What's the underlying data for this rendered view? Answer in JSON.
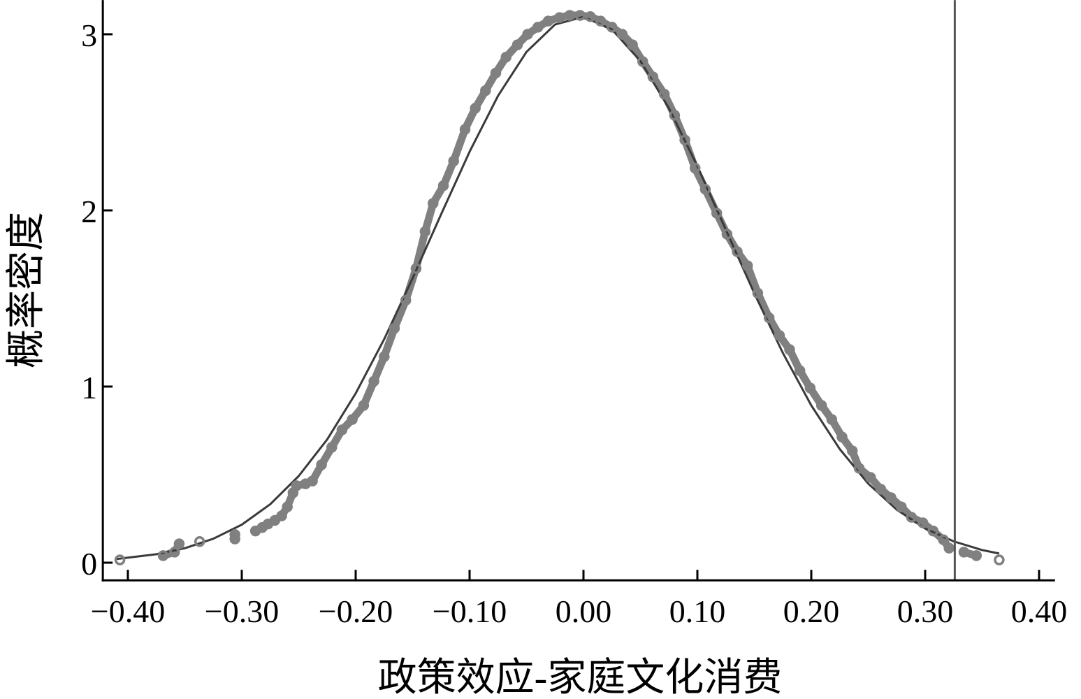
{
  "chart_data": {
    "type": "scatter",
    "title": "",
    "xlabel": "政策效应-家庭文化消费",
    "ylabel": "概率密度",
    "xlim": [
      -0.422,
      0.414
    ],
    "ylim": [
      -0.1,
      3.194
    ],
    "x_ticks": [
      -0.4,
      -0.3,
      -0.2,
      -0.1,
      0.0,
      0.1,
      0.2,
      0.3,
      0.4
    ],
    "x_tick_labels": [
      "−0.40",
      "−0.30",
      "−0.20",
      "−0.10",
      "0.00",
      "0.10",
      "0.20",
      "0.30",
      "0.40"
    ],
    "y_ticks": [
      0,
      1,
      2,
      3
    ],
    "y_tick_labels": [
      "0",
      "1",
      "2",
      "3"
    ],
    "grid": false,
    "legend": "none",
    "reference_line": {
      "orientation": "vertical",
      "x": 0.326
    },
    "colors": {
      "points": "#808080",
      "curve": "#3a3a3a",
      "reference_line": "#555555",
      "axis": "#000000"
    },
    "series": [
      {
        "kind": "scatter",
        "marker": "hollow-circle",
        "points": [
          [
            -0.407,
            0.016
          ],
          [
            -0.369,
            0.04
          ],
          [
            -0.359,
            0.06
          ],
          [
            -0.355,
            0.107
          ],
          [
            -0.337,
            0.12
          ],
          [
            -0.306,
            0.135
          ],
          [
            -0.306,
            0.16
          ],
          [
            -0.288,
            0.18
          ],
          [
            -0.282,
            0.2
          ],
          [
            -0.277,
            0.22
          ],
          [
            -0.271,
            0.24
          ],
          [
            -0.265,
            0.266
          ],
          [
            -0.26,
            0.317
          ],
          [
            -0.255,
            0.397
          ],
          [
            -0.252,
            0.437
          ],
          [
            -0.244,
            0.448
          ],
          [
            -0.238,
            0.464
          ],
          [
            -0.23,
            0.556
          ],
          [
            -0.221,
            0.655
          ],
          [
            -0.212,
            0.754
          ],
          [
            -0.203,
            0.813
          ],
          [
            -0.193,
            0.893
          ],
          [
            -0.184,
            1.03
          ],
          [
            -0.175,
            1.17
          ],
          [
            -0.166,
            1.33
          ],
          [
            -0.156,
            1.49
          ],
          [
            -0.147,
            1.67
          ],
          [
            -0.139,
            1.88
          ],
          [
            -0.132,
            2.04
          ],
          [
            -0.123,
            2.14
          ],
          [
            -0.114,
            2.28
          ],
          [
            -0.104,
            2.46
          ],
          [
            -0.095,
            2.58
          ],
          [
            -0.086,
            2.68
          ],
          [
            -0.077,
            2.78
          ],
          [
            -0.068,
            2.87
          ],
          [
            -0.058,
            2.94
          ],
          [
            -0.049,
            3.0
          ],
          [
            -0.04,
            3.04
          ],
          [
            -0.031,
            3.075
          ],
          [
            -0.021,
            3.095
          ],
          [
            -0.012,
            3.107
          ],
          [
            -0.003,
            3.107
          ],
          [
            0.006,
            3.1
          ],
          [
            0.015,
            3.075
          ],
          [
            0.025,
            3.04
          ],
          [
            0.034,
            3.0
          ],
          [
            0.043,
            2.94
          ],
          [
            0.052,
            2.845
          ],
          [
            0.061,
            2.758
          ],
          [
            0.071,
            2.66
          ],
          [
            0.08,
            2.54
          ],
          [
            0.089,
            2.4
          ],
          [
            0.098,
            2.24
          ],
          [
            0.107,
            2.12
          ],
          [
            0.117,
            1.984
          ],
          [
            0.126,
            1.865
          ],
          [
            0.135,
            1.766
          ],
          [
            0.144,
            1.686
          ],
          [
            0.153,
            1.53
          ],
          [
            0.163,
            1.39
          ],
          [
            0.172,
            1.29
          ],
          [
            0.181,
            1.21
          ],
          [
            0.19,
            1.09
          ],
          [
            0.199,
            0.992
          ],
          [
            0.209,
            0.893
          ],
          [
            0.218,
            0.813
          ],
          [
            0.227,
            0.714
          ],
          [
            0.236,
            0.635
          ],
          [
            0.242,
            0.536
          ],
          [
            0.252,
            0.484
          ],
          [
            0.261,
            0.417
          ],
          [
            0.27,
            0.369
          ],
          [
            0.279,
            0.317
          ],
          [
            0.288,
            0.258
          ],
          [
            0.298,
            0.226
          ],
          [
            0.307,
            0.18
          ],
          [
            0.316,
            0.13
          ],
          [
            0.321,
            0.083
          ],
          [
            0.334,
            0.06
          ],
          [
            0.345,
            0.04
          ],
          [
            0.365,
            0.016
          ]
        ]
      },
      {
        "kind": "line",
        "points": [
          [
            -0.41,
            0.021
          ],
          [
            -0.375,
            0.048
          ],
          [
            -0.35,
            0.082
          ],
          [
            -0.325,
            0.136
          ],
          [
            -0.3,
            0.216
          ],
          [
            -0.275,
            0.332
          ],
          [
            -0.25,
            0.492
          ],
          [
            -0.225,
            0.7
          ],
          [
            -0.2,
            0.961
          ],
          [
            -0.175,
            1.269
          ],
          [
            -0.15,
            1.615
          ],
          [
            -0.125,
            1.978
          ],
          [
            -0.1,
            2.333
          ],
          [
            -0.075,
            2.651
          ],
          [
            -0.05,
            2.9
          ],
          [
            -0.025,
            3.055
          ],
          [
            0.0,
            3.099
          ],
          [
            0.025,
            3.027
          ],
          [
            0.05,
            2.848
          ],
          [
            0.075,
            2.58
          ],
          [
            0.1,
            2.251
          ],
          [
            0.125,
            1.89
          ],
          [
            0.15,
            1.529
          ],
          [
            0.175,
            1.191
          ],
          [
            0.2,
            0.893
          ],
          [
            0.225,
            0.645
          ],
          [
            0.25,
            0.449
          ],
          [
            0.275,
            0.301
          ],
          [
            0.3,
            0.194
          ],
          [
            0.325,
            0.121
          ],
          [
            0.35,
            0.072
          ],
          [
            0.365,
            0.052
          ]
        ]
      }
    ]
  }
}
